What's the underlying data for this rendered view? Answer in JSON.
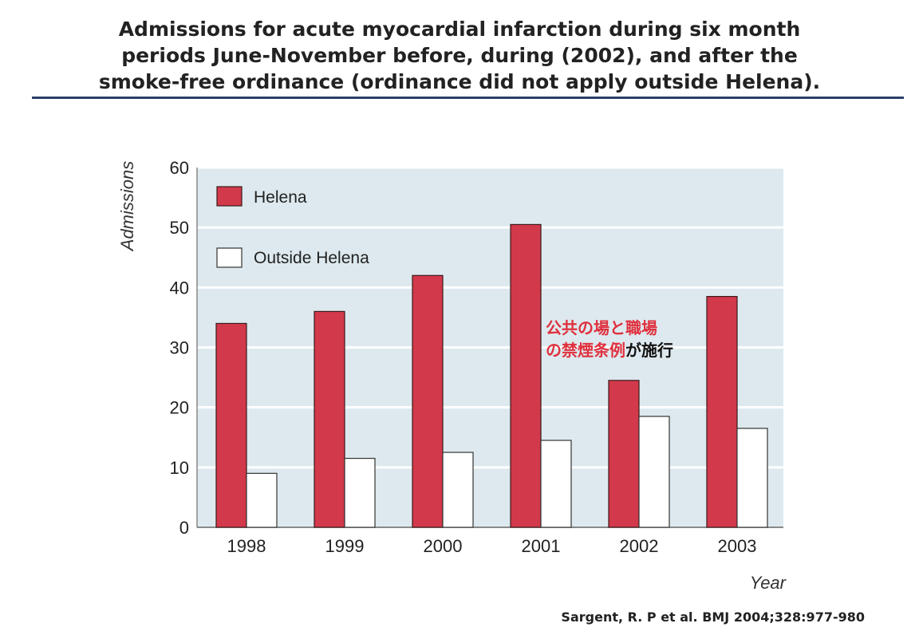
{
  "title": "Admissions for acute myocardial infarction during six month\nperiods June-November before, during (2002), and after the\nsmoke-free ordinance (ordinance did not apply outside Helena).",
  "citation": "Sargent, R. P et al. BMJ 2004;328:977-980",
  "colors": {
    "helena": "#d2394b",
    "outside": "#ffffff",
    "plot_bg": "#dde9ee",
    "grid": "#ffffff",
    "annotation_red": "#e0303e",
    "annotation_black": "#111111",
    "rule": "#2b3f6b"
  },
  "chart_data": {
    "type": "bar",
    "categories": [
      "1998",
      "1999",
      "2000",
      "2001",
      "2002",
      "2003"
    ],
    "series": [
      {
        "name": "Helena",
        "values": [
          34,
          36,
          42,
          50.5,
          24.5,
          38.5
        ]
      },
      {
        "name": "Outside Helena",
        "values": [
          9,
          11.5,
          12.5,
          14.5,
          18.5,
          16.5
        ]
      }
    ],
    "ylabel": "Admissions",
    "xlabel": "Year",
    "ylim": [
      0,
      60
    ],
    "yticks": [
      0,
      10,
      20,
      30,
      40,
      50,
      60
    ],
    "grid": true,
    "legend": "top-left",
    "annotation": {
      "line1": "公共の場と職場",
      "line2_red": "の禁煙条例",
      "line2_black": "が施行"
    }
  }
}
